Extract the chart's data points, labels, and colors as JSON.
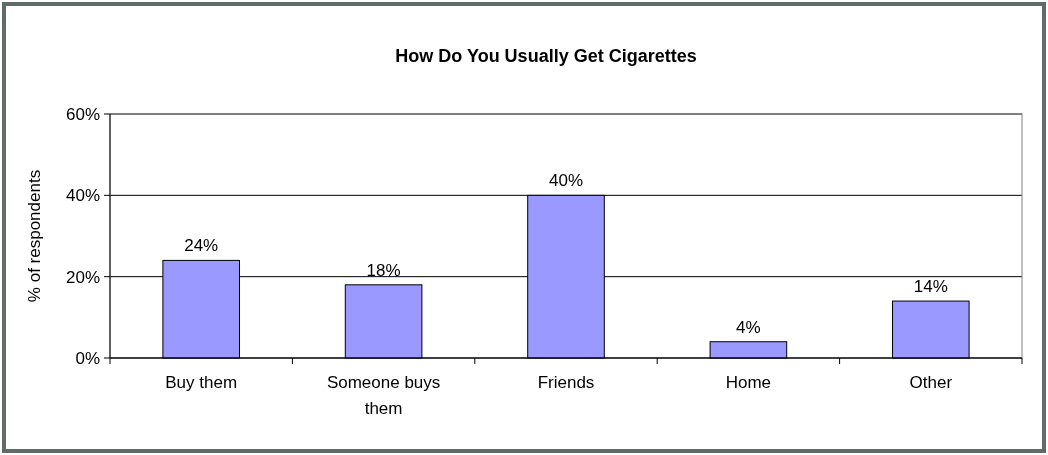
{
  "chart_data": {
    "type": "bar",
    "title": "How Do You Usually Get Cigarettes",
    "ylabel": "% of respondents",
    "categories": [
      "Buy them",
      "Someone buys them",
      "Friends",
      "Home",
      "Other"
    ],
    "values": [
      24,
      18,
      40,
      4,
      14
    ],
    "value_labels": [
      "24%",
      "18%",
      "40%",
      "4%",
      "14%"
    ],
    "color": "#9999ff",
    "ylim": [
      0,
      60
    ],
    "yticks": [
      {
        "value": 0,
        "label": "0%"
      },
      {
        "value": 20,
        "label": "20%"
      },
      {
        "value": 40,
        "label": "40%"
      },
      {
        "value": 60,
        "label": "60%"
      }
    ],
    "grid": "y"
  }
}
